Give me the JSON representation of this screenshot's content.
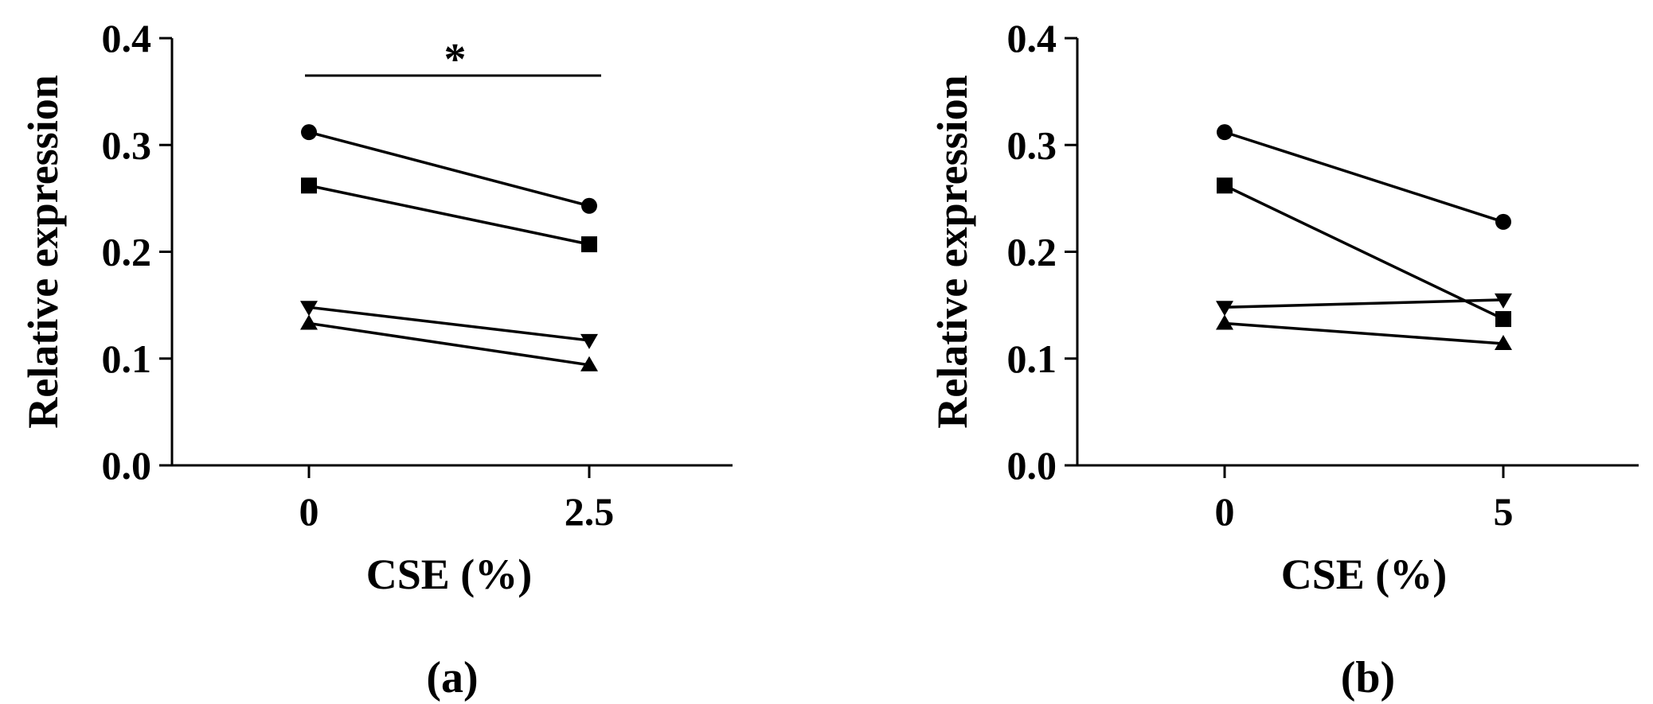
{
  "chart_data": [
    {
      "type": "line",
      "panel_label": "(a)",
      "categories": [
        "0",
        "2.5"
      ],
      "xlabel": "CSE (%)",
      "ylabel": "Relative expression",
      "ylim": [
        0,
        0.4
      ],
      "yticks": [
        "0.0",
        "0.1",
        "0.2",
        "0.3",
        "0.4"
      ],
      "grid": false,
      "series": [
        {
          "marker": "circle",
          "values": [
            0.312,
            0.243
          ]
        },
        {
          "marker": "square",
          "values": [
            0.262,
            0.207
          ]
        },
        {
          "marker": "triangle-down",
          "values": [
            0.148,
            0.117
          ]
        },
        {
          "marker": "triangle-up",
          "values": [
            0.133,
            0.094
          ]
        }
      ],
      "annotations": [
        {
          "text": "*",
          "type": "significance-bar",
          "between": [
            "0",
            "2.5"
          ],
          "y": 0.365
        }
      ]
    },
    {
      "type": "line",
      "panel_label": "(b)",
      "categories": [
        "0",
        "5"
      ],
      "xlabel": "CSE (%)",
      "ylabel": "Relative expression",
      "ylim": [
        0,
        0.4
      ],
      "yticks": [
        "0.0",
        "0.1",
        "0.2",
        "0.3",
        "0.4"
      ],
      "grid": false,
      "series": [
        {
          "marker": "circle",
          "values": [
            0.312,
            0.228
          ]
        },
        {
          "marker": "square",
          "values": [
            0.262,
            0.137
          ]
        },
        {
          "marker": "triangle-down",
          "values": [
            0.148,
            0.155
          ]
        },
        {
          "marker": "triangle-up",
          "values": [
            0.133,
            0.114
          ]
        }
      ],
      "annotations": []
    }
  ]
}
